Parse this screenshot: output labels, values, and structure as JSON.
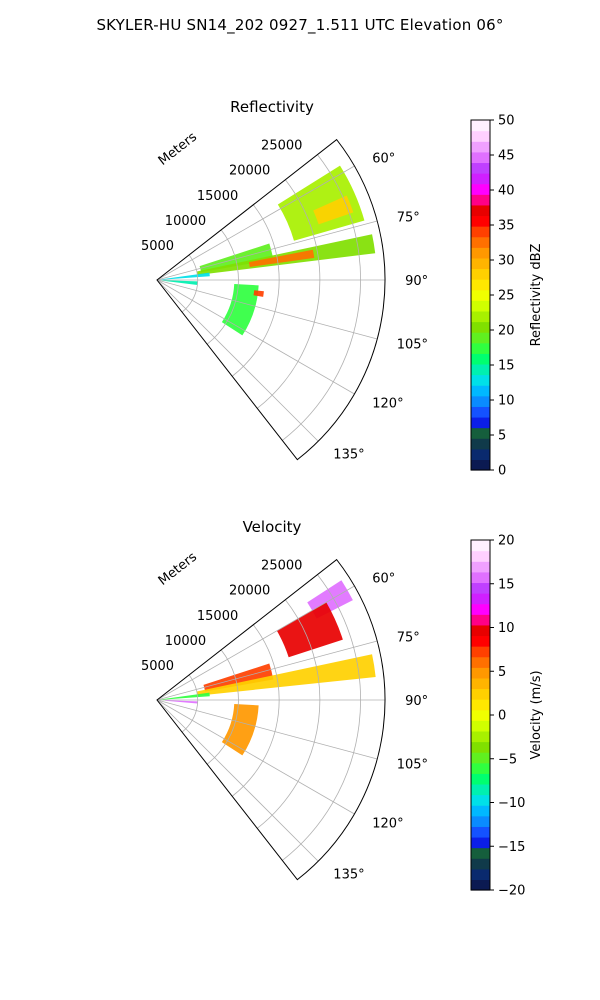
{
  "figure": {
    "suptitle": "SKYLER-HU  SN14_202  0927_1.511 UTC Elevation 06°"
  },
  "chart_data": [
    {
      "type": "polar-sector",
      "title": "Reflectivity",
      "radial_label": "Meters",
      "r_ticks": [
        5000,
        10000,
        15000,
        20000,
        25000
      ],
      "r_tick_labels": [
        "5000",
        "10000",
        "15000",
        "20000",
        "25000"
      ],
      "r_max": 28000,
      "theta_range_deg": [
        52,
        142
      ],
      "theta_ticks": [
        60,
        75,
        90,
        105,
        120,
        135
      ],
      "theta_tick_labels": [
        "60°",
        "75°",
        "90°",
        "105°",
        "120°",
        "135°"
      ],
      "grid": true,
      "colorbar": {
        "label": "Reflectivity dBZ",
        "min": 0,
        "max": 50,
        "ticks": [
          0,
          5,
          10,
          15,
          20,
          25,
          30,
          35,
          40,
          45,
          50
        ],
        "tick_labels": [
          "0",
          "5",
          "10",
          "15",
          "20",
          "25",
          "30",
          "35",
          "40",
          "45",
          "50"
        ],
        "colors": [
          "#0b1a52",
          "#0a2a6e",
          "#103a4a",
          "#155e3c",
          "#0b1ee8",
          "#1452ff",
          "#0a8bff",
          "#00b8ff",
          "#00e0e8",
          "#00f0b0",
          "#00ff70",
          "#30ff40",
          "#60f020",
          "#80e000",
          "#a8f000",
          "#d0ff00",
          "#f0ff00",
          "#ffe800",
          "#ffd000",
          "#ffb400",
          "#ff9800",
          "#ff7000",
          "#ff4000",
          "#ff0000",
          "#e80000",
          "#ff0088",
          "#ff00ff",
          "#d020ff",
          "#c040ff",
          "#e070ff",
          "#f0a0ff",
          "#ffd0ff",
          "#fff0ff"
        ]
      },
      "echo_regions": [
        {
          "theta": [
            58,
            74
          ],
          "r": [
            17500,
            26500
          ],
          "value": 22
        },
        {
          "theta": [
            66,
            71
          ],
          "r": [
            21000,
            25500
          ],
          "value": 28
        },
        {
          "theta": [
            72,
            80
          ],
          "r": [
            5500,
            14500
          ],
          "value": 19
        },
        {
          "theta": [
            78,
            83
          ],
          "r": [
            5000,
            27000
          ],
          "value": 21
        },
        {
          "theta": [
            79,
            82
          ],
          "r": [
            11500,
            19500
          ],
          "value": 32
        },
        {
          "theta": [
            82,
            86
          ],
          "r": [
            500,
            6500
          ],
          "value": 13
        },
        {
          "theta": [
            92,
            97
          ],
          "r": [
            500,
            5000
          ],
          "value": 14
        },
        {
          "theta": [
            93,
            123
          ],
          "r": [
            9500,
            12500
          ],
          "value": 18
        },
        {
          "theta": [
            96,
            99
          ],
          "r": [
            12000,
            13200
          ],
          "value": 34
        }
      ]
    },
    {
      "type": "polar-sector",
      "title": "Velocity",
      "radial_label": "Meters",
      "r_ticks": [
        5000,
        10000,
        15000,
        20000,
        25000
      ],
      "r_tick_labels": [
        "5000",
        "10000",
        "15000",
        "20000",
        "25000"
      ],
      "r_max": 28000,
      "theta_range_deg": [
        52,
        142
      ],
      "theta_ticks": [
        60,
        75,
        90,
        105,
        120,
        135
      ],
      "theta_tick_labels": [
        "60°",
        "75°",
        "90°",
        "105°",
        "120°",
        "135°"
      ],
      "grid": true,
      "colorbar": {
        "label": "Velocity (m/s)",
        "min": -20,
        "max": 20,
        "ticks": [
          -20,
          -15,
          -10,
          -5,
          0,
          5,
          10,
          15,
          20
        ],
        "tick_labels": [
          "−20",
          "−15",
          "−10",
          "−5",
          "0",
          "5",
          "10",
          "15",
          "20"
        ],
        "colors": [
          "#0b1a52",
          "#0a2a6e",
          "#103a4a",
          "#155e3c",
          "#0b1ee8",
          "#1452ff",
          "#0a8bff",
          "#00b8ff",
          "#00e0e8",
          "#00f0b0",
          "#00ff70",
          "#30ff40",
          "#60f020",
          "#80e000",
          "#a8f000",
          "#d0ff00",
          "#f0ff00",
          "#ffe800",
          "#ffd000",
          "#ffb400",
          "#ff9800",
          "#ff7000",
          "#ff4000",
          "#ff0000",
          "#e80000",
          "#ff0088",
          "#ff00ff",
          "#d020ff",
          "#c040ff",
          "#e070ff",
          "#f0a0ff",
          "#ffd0ff",
          "#fff0ff"
        ]
      },
      "echo_regions": [
        {
          "theta": [
            57,
            63
          ],
          "r": [
            22000,
            27000
          ],
          "value": 16
        },
        {
          "theta": [
            60,
            72
          ],
          "r": [
            17000,
            24000
          ],
          "value": 10
        },
        {
          "theta": [
            72,
            80
          ],
          "r": [
            6000,
            14500
          ],
          "value": 7
        },
        {
          "theta": [
            78,
            84
          ],
          "r": [
            5000,
            27000
          ],
          "value": 3
        },
        {
          "theta": [
            82,
            86
          ],
          "r": [
            500,
            6500
          ],
          "value": -6
        },
        {
          "theta": [
            92,
            95
          ],
          "r": [
            1000,
            5000
          ],
          "value": 16
        },
        {
          "theta": [
            93,
            123
          ],
          "r": [
            9500,
            12500
          ],
          "value": 5
        }
      ]
    }
  ]
}
